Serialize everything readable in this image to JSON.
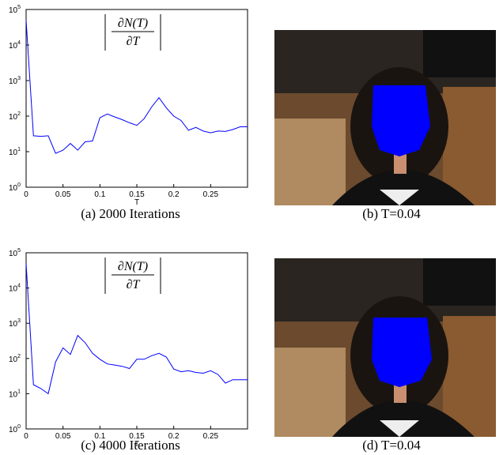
{
  "chart_data": [
    {
      "type": "line",
      "log_y": true,
      "color": "#0000ff",
      "xlabel": "T",
      "annotation": {
        "numerator": "∂N(T)",
        "denominator": "∂T"
      },
      "x": [
        0,
        0.01,
        0.02,
        0.03,
        0.04,
        0.05,
        0.06,
        0.07,
        0.08,
        0.09,
        0.1,
        0.11,
        0.12,
        0.13,
        0.14,
        0.15,
        0.16,
        0.17,
        0.18,
        0.19,
        0.2,
        0.21,
        0.22,
        0.23,
        0.24,
        0.25,
        0.26,
        0.27,
        0.28,
        0.29,
        0.3
      ],
      "values": [
        50000,
        28,
        27,
        28,
        9,
        11,
        17,
        11,
        19,
        20,
        90,
        115,
        95,
        80,
        65,
        55,
        85,
        180,
        330,
        170,
        100,
        75,
        40,
        48,
        38,
        34,
        38,
        37,
        42,
        50,
        50
      ],
      "xlim": [
        0,
        0.3
      ],
      "ylim": [
        1,
        100000
      ],
      "xticks": [
        0,
        0.05,
        0.1,
        0.15,
        0.2,
        0.25
      ],
      "yticks": [
        {
          "value": 1,
          "label": "10^0"
        },
        {
          "value": 10,
          "label": "10^1"
        },
        {
          "value": 100,
          "label": "10^2"
        },
        {
          "value": 1000,
          "label": "10^3"
        },
        {
          "value": 10000,
          "label": "10^4"
        },
        {
          "value": 100000,
          "label": "10^5"
        }
      ]
    },
    {
      "type": "line",
      "log_y": true,
      "color": "#0000ff",
      "xlabel": "T",
      "annotation": {
        "numerator": "∂N(T)",
        "denominator": "∂T"
      },
      "x": [
        0,
        0.01,
        0.02,
        0.03,
        0.04,
        0.05,
        0.06,
        0.07,
        0.08,
        0.09,
        0.1,
        0.11,
        0.12,
        0.13,
        0.14,
        0.15,
        0.16,
        0.17,
        0.18,
        0.19,
        0.2,
        0.21,
        0.22,
        0.23,
        0.24,
        0.25,
        0.26,
        0.27,
        0.28,
        0.29,
        0.3
      ],
      "values": [
        50000,
        18,
        14,
        10,
        80,
        200,
        130,
        450,
        280,
        140,
        95,
        70,
        65,
        60,
        52,
        95,
        95,
        120,
        140,
        110,
        50,
        42,
        45,
        40,
        38,
        45,
        35,
        20,
        25,
        25,
        25
      ],
      "xlim": [
        0,
        0.3
      ],
      "ylim": [
        1,
        100000
      ],
      "xticks": [
        0,
        0.05,
        0.1,
        0.15,
        0.2,
        0.25
      ],
      "yticks": [
        {
          "value": 1,
          "label": "10^0"
        },
        {
          "value": 10,
          "label": "10^1"
        },
        {
          "value": 100,
          "label": "10^2"
        },
        {
          "value": 1000,
          "label": "10^3"
        },
        {
          "value": 10000,
          "label": "10^4"
        },
        {
          "value": 100000,
          "label": "10^5"
        }
      ]
    }
  ],
  "captions": [
    "(a)  2000 Iterations",
    "(b)  T=0.04",
    "(c)  4000 Iterations",
    "(d)  T=0.04"
  ]
}
